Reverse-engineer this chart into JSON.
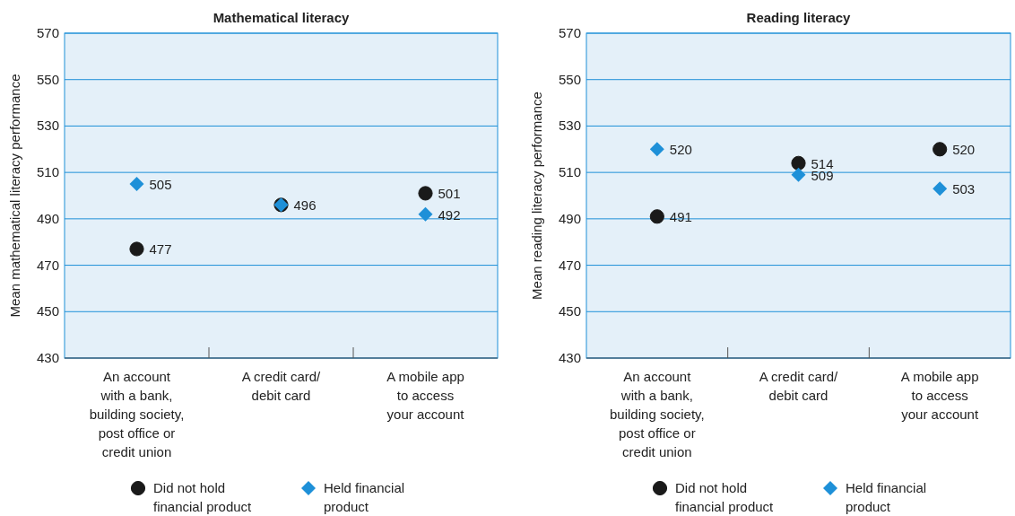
{
  "chart_data": [
    {
      "type": "scatter",
      "title": "Mathematical literacy",
      "ylabel": "Mean mathematical literacy performance",
      "categories": [
        "An account\nwith a bank,\nbuilding society,\npost office or\ncredit union",
        "A credit card/\ndebit card",
        "A mobile app\nto access\nyour account"
      ],
      "series": [
        {
          "name": "Did not hold\nfinancial product",
          "color": "#1a1a1a",
          "marker": "circle",
          "values": [
            477,
            496,
            501
          ],
          "value_labels": [
            "477",
            null,
            "501"
          ]
        },
        {
          "name": "Held financial\nproduct",
          "color": "#1e90d8",
          "marker": "diamond",
          "values": [
            505,
            496,
            492
          ],
          "value_labels": [
            "505",
            "496",
            "492"
          ]
        }
      ],
      "ylim": [
        430,
        570
      ],
      "yticks": [
        430,
        450,
        470,
        490,
        510,
        530,
        550,
        570
      ],
      "grid": "y",
      "legend": "bottom"
    },
    {
      "type": "scatter",
      "title": "Reading literacy",
      "ylabel": "Mean reading literacy performance",
      "categories": [
        "An account\nwith a bank,\nbuilding society,\npost office or\ncredit union",
        "A credit card/\ndebit card",
        "A mobile app\nto access\nyour account"
      ],
      "series": [
        {
          "name": "Did not hold\nfinancial product",
          "color": "#1a1a1a",
          "marker": "circle",
          "values": [
            491,
            514,
            520
          ],
          "value_labels": [
            "491",
            "514",
            "520"
          ]
        },
        {
          "name": "Held financial\nproduct",
          "color": "#1e90d8",
          "marker": "diamond",
          "values": [
            520,
            509,
            503
          ],
          "value_labels": [
            "520",
            "509",
            "503"
          ]
        }
      ],
      "ylim": [
        430,
        570
      ],
      "yticks": [
        430,
        450,
        470,
        490,
        510,
        530,
        550,
        570
      ],
      "grid": "y",
      "legend": "bottom"
    }
  ]
}
